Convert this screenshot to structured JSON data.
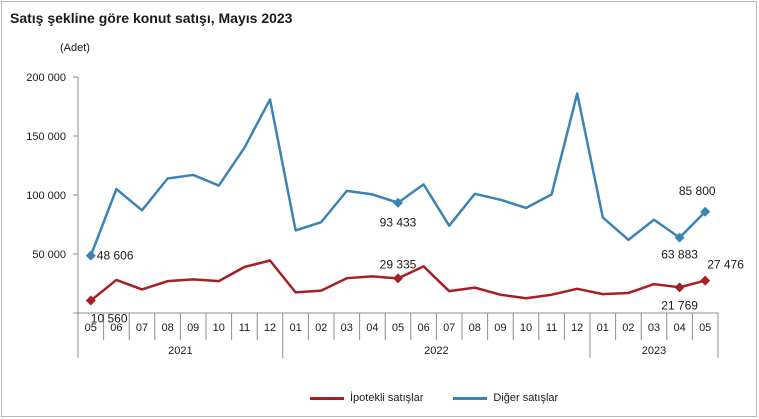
{
  "title": "Satış şekline göre konut satışı, Mayıs 2023",
  "unit": "(Adet)",
  "colors": {
    "ipotekli": "#a51f24",
    "diger": "#3b83b5",
    "axis": "#8c8c8c"
  },
  "chart_data": {
    "type": "line",
    "title": "Satış şekline göre konut satışı, Mayıs 2023",
    "ylabel": "(Adet)",
    "ylim": [
      0,
      200000
    ],
    "yticks": [
      0,
      50000,
      100000,
      150000,
      200000
    ],
    "ytick_labels": [
      "",
      "50 000",
      "100 000",
      "150 000",
      "200 000"
    ],
    "grid": false,
    "legend_placement": "bottom",
    "categories": [
      "05",
      "06",
      "07",
      "08",
      "09",
      "10",
      "11",
      "12",
      "01",
      "02",
      "03",
      "04",
      "05",
      "06",
      "07",
      "08",
      "09",
      "10",
      "11",
      "12",
      "01",
      "02",
      "03",
      "04",
      "05"
    ],
    "year_groups": [
      {
        "label": "2021",
        "count": 8
      },
      {
        "label": "2022",
        "count": 12
      },
      {
        "label": "2023",
        "count": 5
      }
    ],
    "series": [
      {
        "name": "İpotekli satışlar",
        "color": "#a51f24",
        "values": [
          10560,
          28000,
          20000,
          27000,
          28500,
          27000,
          39000,
          44500,
          17500,
          19000,
          29500,
          31000,
          29335,
          39500,
          18500,
          21500,
          15500,
          12500,
          15500,
          20500,
          16000,
          17000,
          24500,
          21769,
          27476
        ],
        "markers": [
          0,
          12,
          23,
          24
        ],
        "labels": [
          {
            "index": 0,
            "text": "10 560"
          },
          {
            "index": 12,
            "text": "29 335"
          },
          {
            "index": 23,
            "text": "21 769"
          },
          {
            "index": 24,
            "text": "27 476"
          }
        ]
      },
      {
        "name": "Diğer satışlar",
        "color": "#3b83b5",
        "values": [
          48606,
          105000,
          87000,
          114000,
          117000,
          108000,
          140000,
          181000,
          70000,
          77000,
          103500,
          100500,
          93433,
          109000,
          74000,
          101000,
          96000,
          89000,
          100500,
          186000,
          81000,
          62000,
          79000,
          63883,
          85800
        ],
        "markers": [
          0,
          12,
          23,
          24
        ],
        "labels": [
          {
            "index": 0,
            "text": "48 606"
          },
          {
            "index": 12,
            "text": "93 433"
          },
          {
            "index": 23,
            "text": "63 883"
          },
          {
            "index": 24,
            "text": "85 800"
          }
        ]
      }
    ]
  }
}
